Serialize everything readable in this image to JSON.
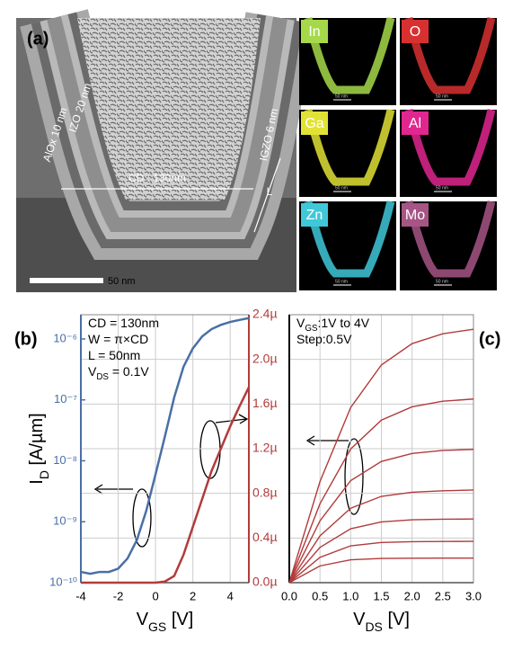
{
  "image_panel": {
    "panel": "(a)",
    "labels": [
      "IZO 20 nm",
      "AlOx 10 nm",
      "CD : 130nm",
      "IGZO 6 nm",
      "L"
    ],
    "scale_bar": "50 nm",
    "maps": [
      {
        "element": "In",
        "color": "#a6d94a",
        "scale_bar": "50 nm"
      },
      {
        "element": "O",
        "color": "#d83030",
        "scale_bar": "50 nm"
      },
      {
        "element": "Ga",
        "color": "#e2e236",
        "scale_bar": "50 nm"
      },
      {
        "element": "Al",
        "color": "#e0268f",
        "scale_bar": "50 nm"
      },
      {
        "element": "Zn",
        "color": "#3fc8d8",
        "scale_bar": "50 nm"
      },
      {
        "element": "Mo",
        "color": "#a65585",
        "scale_bar": "50 nm"
      }
    ]
  },
  "chart_data": [
    {
      "type": "line",
      "panel": "(b)",
      "x": [
        -4,
        -3.5,
        -3,
        -2.5,
        -2,
        -1.5,
        -1,
        -0.5,
        0,
        0.5,
        1,
        1.5,
        2,
        2.5,
        3,
        3.5,
        4,
        4.5,
        5
      ],
      "xlim": [
        -4,
        5
      ],
      "xticks": [
        -4,
        -2,
        0,
        2,
        4
      ],
      "ylim": [
        1e-10,
        2.5e-06
      ],
      "ylog": true,
      "yticks": [
        {
          "value": 1e-10,
          "label": "10⁻¹⁰"
        },
        {
          "value": 1e-09,
          "label": "10⁻⁹"
        },
        {
          "value": 1e-08,
          "label": "10⁻⁸"
        },
        {
          "value": 1e-07,
          "label": "10⁻⁷"
        },
        {
          "value": 1e-06,
          "label": "10⁻⁶"
        }
      ],
      "y2lim": [
        0,
        2.4
      ],
      "y2ticks": [
        {
          "value": 0,
          "label": "0.0µ"
        },
        {
          "value": 0.4,
          "label": "0.4µ"
        },
        {
          "value": 0.8,
          "label": "0.8µ"
        },
        {
          "value": 1.2,
          "label": "1.2µ"
        },
        {
          "value": 1.6,
          "label": "1.6µ"
        },
        {
          "value": 2,
          "label": "2.0µ"
        },
        {
          "value": 2.4,
          "label": "2.4µ"
        }
      ],
      "xlabel": [
        "V",
        "GS",
        " [V]"
      ],
      "ylabel": [
        "I",
        "D",
        " [A/µm]"
      ],
      "annotations": [
        [
          "CD = 130nm"
        ],
        [
          "W = π×CD"
        ],
        [
          "L = 50nm"
        ],
        [
          "V",
          "DS",
          " = 0.1V"
        ]
      ],
      "grid": true,
      "series": [
        {
          "color": "#4a6fa5",
          "values": [
            1.5e-10,
            1.4e-10,
            1.5e-10,
            1.5e-10,
            1.7e-10,
            2.5e-10,
            5e-10,
            1.5e-09,
            6e-09,
            2.5e-08,
            1.1e-07,
            3.5e-07,
            7e-07,
            1.1e-06,
            1.45e-06,
            1.7e-06,
            1.9e-06,
            2.05e-06,
            2.2e-06
          ]
        },
        {
          "color": "#b23b3b",
          "axis": "y2",
          "values": [
            0,
            0,
            0,
            0,
            0,
            0,
            0,
            0,
            0,
            0.01,
            0.06,
            0.25,
            0.5,
            0.75,
            1.0,
            1.2,
            1.4,
            1.58,
            1.75
          ]
        }
      ]
    },
    {
      "type": "line",
      "panel": "(c)",
      "x": [
        0,
        0.5,
        1,
        1.5,
        2,
        2.5,
        3
      ],
      "xlim": [
        0,
        3
      ],
      "xticks": [
        {
          "value": 0,
          "label": "0.0"
        },
        0.5,
        {
          "value": 1,
          "label": "1.0"
        },
        1.5,
        {
          "value": 2,
          "label": "2.0"
        },
        2.5,
        {
          "value": 3,
          "label": "3.0"
        }
      ],
      "ylim": [
        0,
        2.4
      ],
      "yticks": [
        0,
        0.4,
        0.8,
        1.2,
        1.6,
        2,
        2.4
      ],
      "xlabel": [
        "V",
        "DS",
        " [V]"
      ],
      "annotations": [
        [
          "V",
          "GS",
          ":1V to 4V"
        ],
        [
          "Step:0.5V"
        ]
      ],
      "grid": true,
      "series": [
        {
          "color": "#b23b3b",
          "values": [
            0,
            0.15,
            0.205,
            0.217,
            0.219,
            0.22,
            0.22
          ]
        },
        {
          "color": "#b23b3b",
          "values": [
            0,
            0.227,
            0.33,
            0.36,
            0.367,
            0.369,
            0.37
          ]
        },
        {
          "color": "#b23b3b",
          "values": [
            0,
            0.316,
            0.483,
            0.544,
            0.563,
            0.568,
            0.57
          ]
        },
        {
          "color": "#b23b3b",
          "values": [
            0,
            0.419,
            0.667,
            0.773,
            0.81,
            0.823,
            0.83
          ]
        },
        {
          "color": "#b23b3b",
          "values": [
            0,
            0.554,
            0.914,
            1.086,
            1.157,
            1.184,
            1.194
          ]
        },
        {
          "color": "#b23b3b",
          "values": [
            0,
            0.707,
            1.197,
            1.456,
            1.575,
            1.625,
            1.645
          ]
        },
        {
          "color": "#b23b3b",
          "values": [
            0,
            0.906,
            1.569,
            1.95,
            2.141,
            2.229,
            2.27
          ]
        }
      ]
    }
  ]
}
